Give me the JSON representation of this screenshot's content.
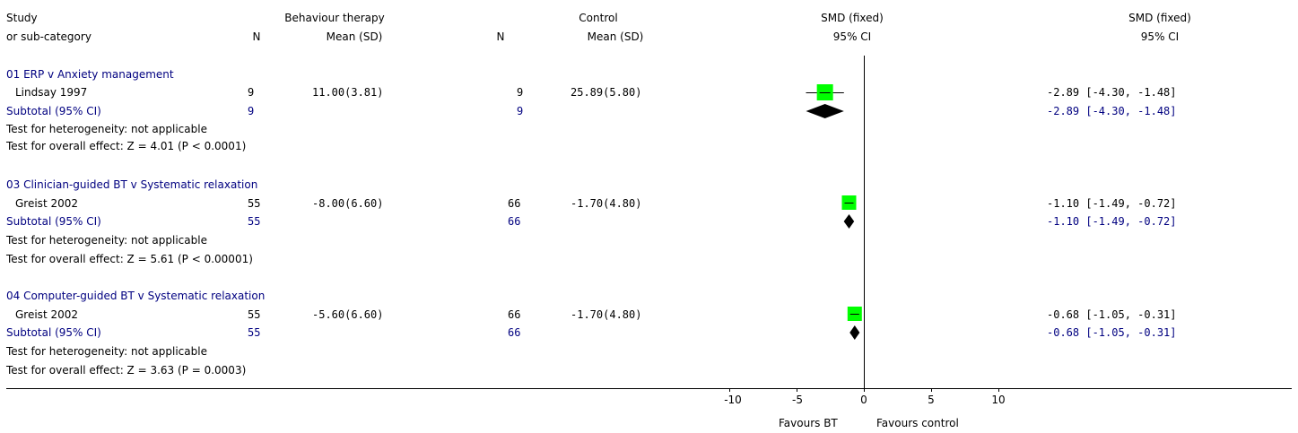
{
  "colors": {
    "subtotal": "#000080",
    "box": "#00ff00",
    "diamond": "#000000",
    "text": "#000000"
  },
  "header": {
    "study_l1": "Study",
    "study_l2": "or sub-category",
    "bt_title": "Behaviour therapy",
    "bt_n": "N",
    "bt_mean": "Mean (SD)",
    "ctrl_title": "Control",
    "ctrl_n": "N",
    "ctrl_mean": "Mean (SD)",
    "plot_title": "SMD (fixed)",
    "plot_ci": "95% CI",
    "res_title": "SMD (fixed)",
    "res_ci": "95% CI"
  },
  "groups": [
    {
      "title": "01 ERP v Anxiety management",
      "study": {
        "name": "Lindsay 1997",
        "bt_n": "9",
        "bt_mean": "11.00(3.81)",
        "ctrl_n": "9",
        "ctrl_mean": "25.89(5.80)",
        "result": "-2.89 [-4.30, -1.48]"
      },
      "subtotal": {
        "label": "Subtotal (95% CI)",
        "bt_n": "9",
        "ctrl_n": "9",
        "result": "-2.89 [-4.30, -1.48]"
      },
      "heterogeneity": "Test for heterogeneity: not applicable",
      "overall": "Test for overall effect: Z = 4.01 (P < 0.0001)"
    },
    {
      "title": "03 Clinician-guided BT v Systematic relaxation",
      "study": {
        "name": "Greist 2002",
        "bt_n": "55",
        "bt_mean": "-8.00(6.60)",
        "ctrl_n": "66",
        "ctrl_mean": "-1.70(4.80)",
        "result": "-1.10 [-1.49, -0.72]"
      },
      "subtotal": {
        "label": "Subtotal (95% CI)",
        "bt_n": "55",
        "ctrl_n": "66",
        "result": "-1.10 [-1.49, -0.72]"
      },
      "heterogeneity": "Test for heterogeneity: not applicable",
      "overall": "Test for overall effect: Z = 5.61 (P < 0.00001)"
    },
    {
      "title": "04 Computer-guided BT v Systematic relaxation",
      "study": {
        "name": "Greist 2002",
        "bt_n": "55",
        "bt_mean": "-5.60(6.60)",
        "ctrl_n": "66",
        "ctrl_mean": "-1.70(4.80)",
        "result": "-0.68 [-1.05, -0.31]"
      },
      "subtotal": {
        "label": "Subtotal (95% CI)",
        "bt_n": "55",
        "ctrl_n": "66",
        "result": "-0.68 [-1.05, -0.31]"
      },
      "heterogeneity": "Test for heterogeneity: not applicable",
      "overall": "Test for overall effect: Z = 3.63 (P = 0.0003)"
    }
  ],
  "footer": {
    "favours_bt": "Favours BT",
    "favours_control": "Favours control"
  },
  "chart_data": {
    "type": "forest",
    "xlim": [
      -10,
      10
    ],
    "ticks": [
      "-10",
      "-5",
      "0",
      "5",
      "10"
    ],
    "tick_values": [
      -10,
      -5,
      0,
      5,
      10
    ],
    "studies": [
      {
        "name": "Lindsay 1997",
        "smd": -2.89,
        "lo": -4.3,
        "hi": -1.48
      },
      {
        "name": "Greist 2002",
        "smd": -1.1,
        "lo": -1.49,
        "hi": -0.72
      },
      {
        "name": "Greist 2002",
        "smd": -0.68,
        "lo": -1.05,
        "hi": -0.31
      }
    ],
    "subtotals": [
      {
        "smd": -2.89,
        "lo": -4.3,
        "hi": -1.48
      },
      {
        "smd": -1.1,
        "lo": -1.49,
        "hi": -0.72
      },
      {
        "smd": -0.68,
        "lo": -1.05,
        "hi": -0.31
      }
    ]
  }
}
